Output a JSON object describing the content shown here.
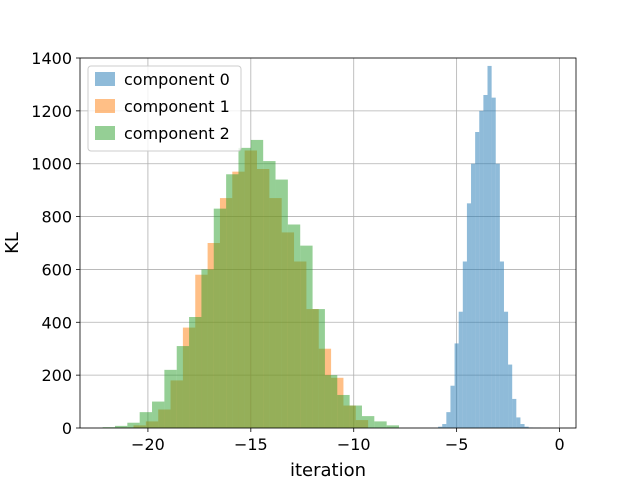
{
  "chart_data": {
    "type": "bar",
    "subtype": "overlapping-histogram",
    "xlabel": "iteration",
    "ylabel": "KL",
    "xlim": [
      -23.3,
      0.8
    ],
    "ylim": [
      0,
      1400
    ],
    "xticks": [
      -20,
      -15,
      -10,
      -5,
      0
    ],
    "xtick_labels": [
      "−20",
      "−15",
      "−10",
      "−5",
      "0"
    ],
    "yticks": [
      0,
      200,
      400,
      600,
      800,
      1000,
      1200,
      1400
    ],
    "ytick_labels": [
      "0",
      "200",
      "400",
      "600",
      "800",
      "1000",
      "1200",
      "1400"
    ],
    "grid": true,
    "legend_position": "top-left",
    "series": [
      {
        "name": "component 0",
        "color": "#1f77b4",
        "alpha": 0.5,
        "bins": [
          -5.9,
          -5.7,
          -5.5,
          -5.3,
          -5.1,
          -4.9,
          -4.7,
          -4.5,
          -4.3,
          -4.1,
          -3.9,
          -3.7,
          -3.5,
          -3.3,
          -3.1,
          -2.9,
          -2.7,
          -2.5,
          -2.3,
          -2.1,
          -1.9,
          -1.7,
          -1.5,
          -1.3,
          -1.1,
          -0.9
        ],
        "values": [
          5,
          15,
          60,
          160,
          320,
          440,
          630,
          850,
          1000,
          1120,
          1200,
          1260,
          1370,
          1250,
          1000,
          630,
          440,
          240,
          110,
          40,
          15,
          5,
          2,
          1,
          1
        ]
      },
      {
        "name": "component 1",
        "color": "#ff7f0e",
        "alpha": 0.5,
        "bins": [
          -21.3,
          -20.7,
          -20.1,
          -19.5,
          -18.9,
          -18.3,
          -17.7,
          -17.1,
          -16.5,
          -15.9,
          -15.3,
          -14.7,
          -14.1,
          -13.5,
          -12.9,
          -12.3,
          -11.7,
          -11.1,
          -10.5,
          -9.9,
          -9.3
        ],
        "values": [
          2,
          10,
          25,
          70,
          180,
          380,
          580,
          700,
          870,
          970,
          1050,
          980,
          870,
          740,
          630,
          450,
          300,
          190,
          85,
          30,
          8
        ]
      },
      {
        "name": "component 2",
        "color": "#2ca02c",
        "alpha": 0.5,
        "bins": [
          -22.2,
          -21.6,
          -21.0,
          -20.4,
          -19.8,
          -19.2,
          -18.6,
          -18.0,
          -17.4,
          -16.8,
          -16.2,
          -15.6,
          -15.0,
          -14.4,
          -13.8,
          -13.2,
          -12.6,
          -12.0,
          -11.4,
          -10.8,
          -10.2,
          -9.6,
          -9.0,
          -8.4,
          -7.8
        ],
        "values": [
          3,
          8,
          20,
          60,
          100,
          220,
          310,
          420,
          600,
          830,
          960,
          1060,
          1090,
          1010,
          940,
          770,
          690,
          450,
          200,
          125,
          85,
          45,
          25,
          10,
          3
        ]
      }
    ]
  }
}
